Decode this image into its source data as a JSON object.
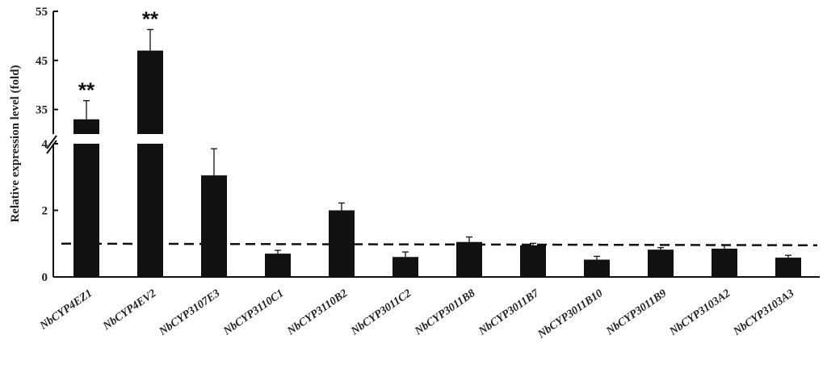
{
  "chart_data": {
    "type": "bar",
    "ylabel": "Relative expression level (fold)",
    "xlabel": "",
    "categories": [
      "NbCYP4EZ1",
      "NbCYP4EV2",
      "NbCYP3107E3",
      "NbCYP3110C1",
      "NbCYP3110B2",
      "NbCYP3011C2",
      "NbCYP3011B8",
      "NbCYP3011B7",
      "NbCYP3011B10",
      "NbCYP3011B9",
      "NbCYP3103A2",
      "NbCYP3103A3"
    ],
    "values": [
      33,
      47,
      3.05,
      0.7,
      2.0,
      0.6,
      1.05,
      0.95,
      0.52,
      0.82,
      0.85,
      0.58
    ],
    "errors": [
      3.8,
      4.3,
      0.8,
      0.1,
      0.22,
      0.15,
      0.15,
      0.06,
      0.1,
      0.06,
      0.1,
      0.07
    ],
    "significance": [
      "**",
      "**",
      "",
      "",
      "",
      "",
      "",
      "",
      "",
      "",
      "",
      ""
    ],
    "broken_axis": {
      "lower_range": [
        0,
        4
      ],
      "upper_range": [
        30,
        55
      ],
      "lower_ticks": [
        "0",
        "2",
        "4"
      ],
      "upper_ticks": [
        "35",
        "45",
        "55"
      ]
    },
    "reference_line": 1,
    "grid": false,
    "bar_color": "#111111"
  }
}
